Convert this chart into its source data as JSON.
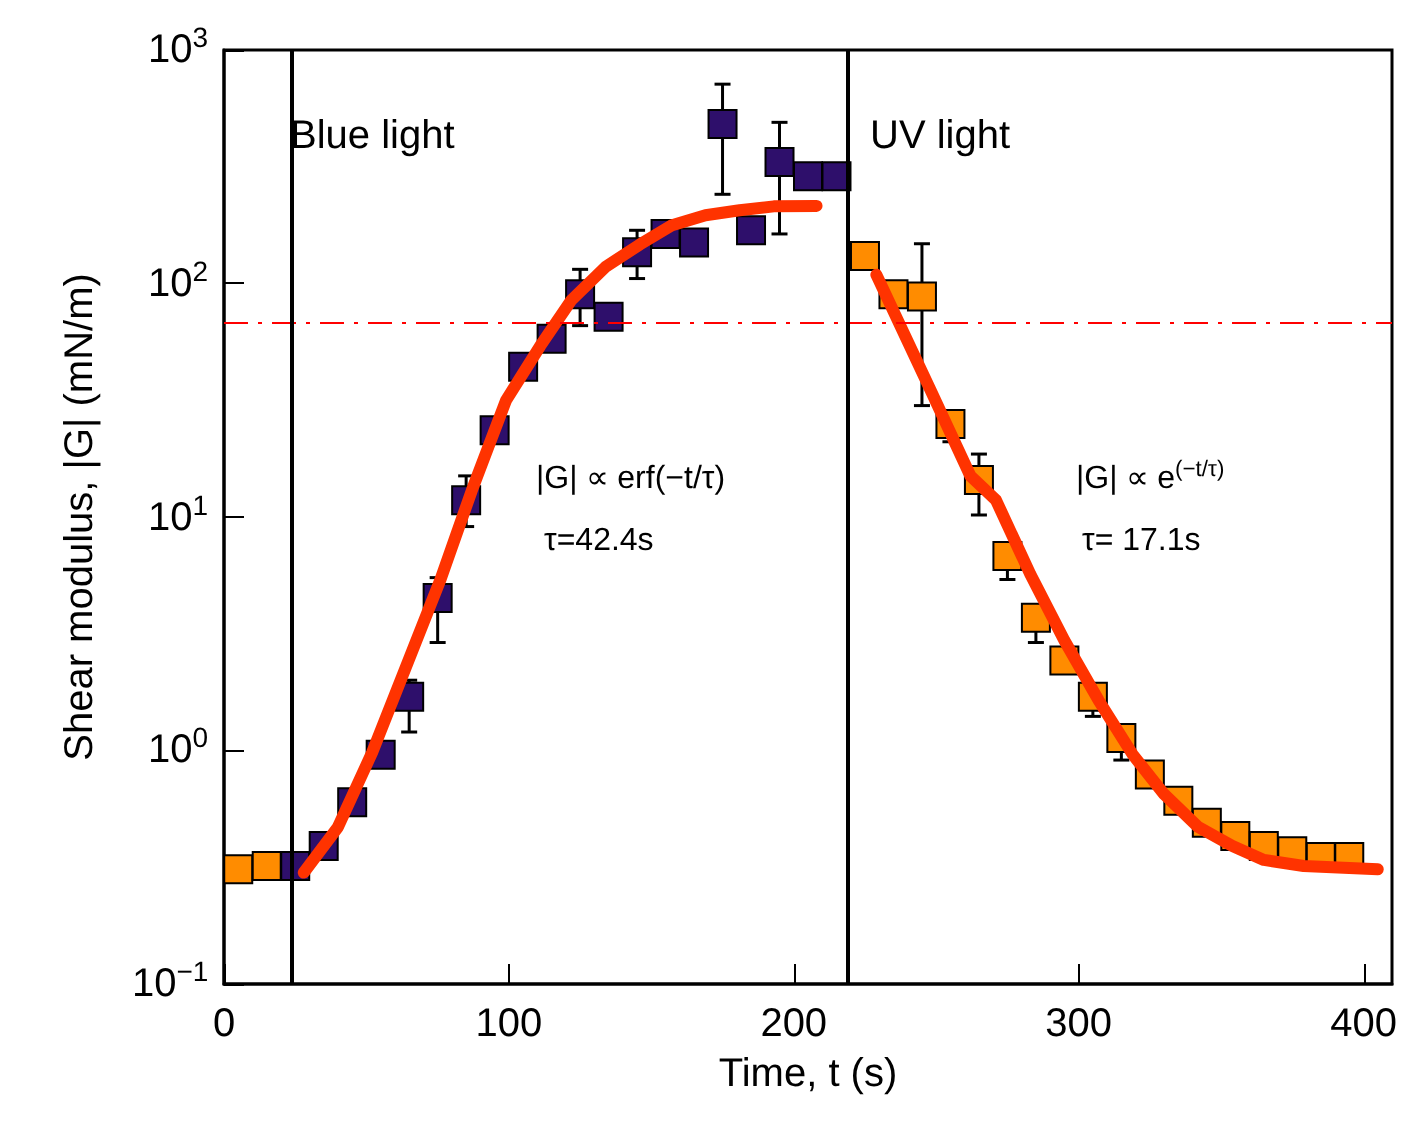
{
  "chart_data": {
    "type": "scatter",
    "xlabel": "Time, t (s)",
    "ylabel": "Shear modulus, |G| (mN/m)",
    "annotations": [
      "Blue light",
      "UV light",
      "|G| ∝ erf(−t/τ)",
      "τ=42.4s",
      "|G| ∝ e$^{(−t/τ)}$",
      "τ= 17.1s"
    ],
    "xlim": [
      0,
      410
    ],
    "xticks": [
      0,
      100,
      200,
      300,
      400
    ],
    "ylim": [
      0.1,
      1000
    ],
    "yticks": [
      {
        "value": 0.1,
        "label": "10$^{−1}$"
      },
      {
        "value": 1,
        "label": "10$^{0}$"
      },
      {
        "value": 10,
        "label": "10$^{1}$"
      },
      {
        "value": 100,
        "label": "10$^{2}$"
      },
      {
        "value": 1000,
        "label": "10$^{3}$"
      }
    ],
    "log": "y",
    "grid": false,
    "marker": "square",
    "ref_lines": [
      {
        "axis": "y",
        "value": 68,
        "color": "#ff0000",
        "line_style": "dashed"
      },
      {
        "axis": "x",
        "value": 24,
        "color": "#000000",
        "line_style": "solid"
      },
      {
        "axis": "x",
        "value": 219,
        "color": "#000000",
        "line_style": "solid"
      }
    ],
    "series": [
      {
        "color": "#2e0f6b",
        "x": [
          25,
          35,
          45,
          55,
          65,
          75,
          85,
          95,
          105,
          115,
          125,
          135,
          145,
          155,
          165,
          175,
          185,
          195,
          205,
          215
        ],
        "values": [
          0.32,
          0.39,
          0.6,
          0.96,
          1.7,
          4.5,
          11.8,
          23.5,
          44,
          58,
          90,
          72,
          136,
          163,
          150,
          482,
          169,
          331,
          288,
          288
        ],
        "errors": [
          null,
          null,
          null,
          null,
          [
            1.2,
            2.0
          ],
          [
            2.9,
            5.5
          ],
          [
            9.1,
            15
          ],
          [
            21,
            26
          ],
          [
            40,
            50
          ],
          null,
          [
            66,
            115
          ],
          null,
          [
            105,
            169
          ],
          null,
          [
            134,
            165
          ],
          [
            241,
            714
          ],
          null,
          [
            163,
            490
          ],
          null,
          null
        ]
      },
      {
        "color": "#ff8c00",
        "x": [
          5,
          15,
          225,
          235,
          245,
          255,
          265,
          275,
          285,
          295,
          305,
          315,
          325,
          335,
          345,
          355,
          365,
          375,
          385,
          395
        ],
        "values": [
          0.31,
          0.32,
          131,
          90,
          88,
          25,
          14.4,
          6.8,
          3.7,
          2.43,
          1.7,
          1.13,
          0.79,
          0.61,
          0.49,
          0.43,
          0.39,
          0.37,
          0.35,
          0.35
        ],
        "errors": [
          null,
          null,
          null,
          null,
          [
            30,
            148
          ],
          [
            21,
            28
          ],
          [
            10.2,
            18.6
          ],
          [
            5.4,
            7.5
          ],
          [
            2.9,
            4.0
          ],
          null,
          [
            1.4,
            1.8
          ],
          [
            0.91,
            1.2
          ],
          null,
          null,
          null,
          null,
          null,
          null,
          null,
          null
        ]
      },
      {
        "type": "line",
        "color": "#ff3300",
        "marker": "none",
        "x": [
          28,
          40,
          52,
          64,
          76,
          87,
          99,
          111,
          122,
          134,
          146,
          157,
          169,
          181,
          193,
          208
        ],
        "values": [
          0.3,
          0.47,
          0.98,
          2.3,
          5.4,
          13,
          31.6,
          54,
          85,
          118,
          147,
          177,
          196,
          206,
          214,
          215
        ]
      },
      {
        "type": "line",
        "color": "#ff3300",
        "marker": "none",
        "x": [
          229,
          248,
          262,
          271,
          283,
          295,
          307,
          319,
          330,
          342,
          354,
          365,
          379,
          405
        ],
        "values": [
          109,
          35,
          15,
          11.8,
          5.7,
          2.96,
          1.64,
          0.96,
          0.65,
          0.47,
          0.39,
          0.34,
          0.32,
          0.31
        ]
      }
    ]
  }
}
